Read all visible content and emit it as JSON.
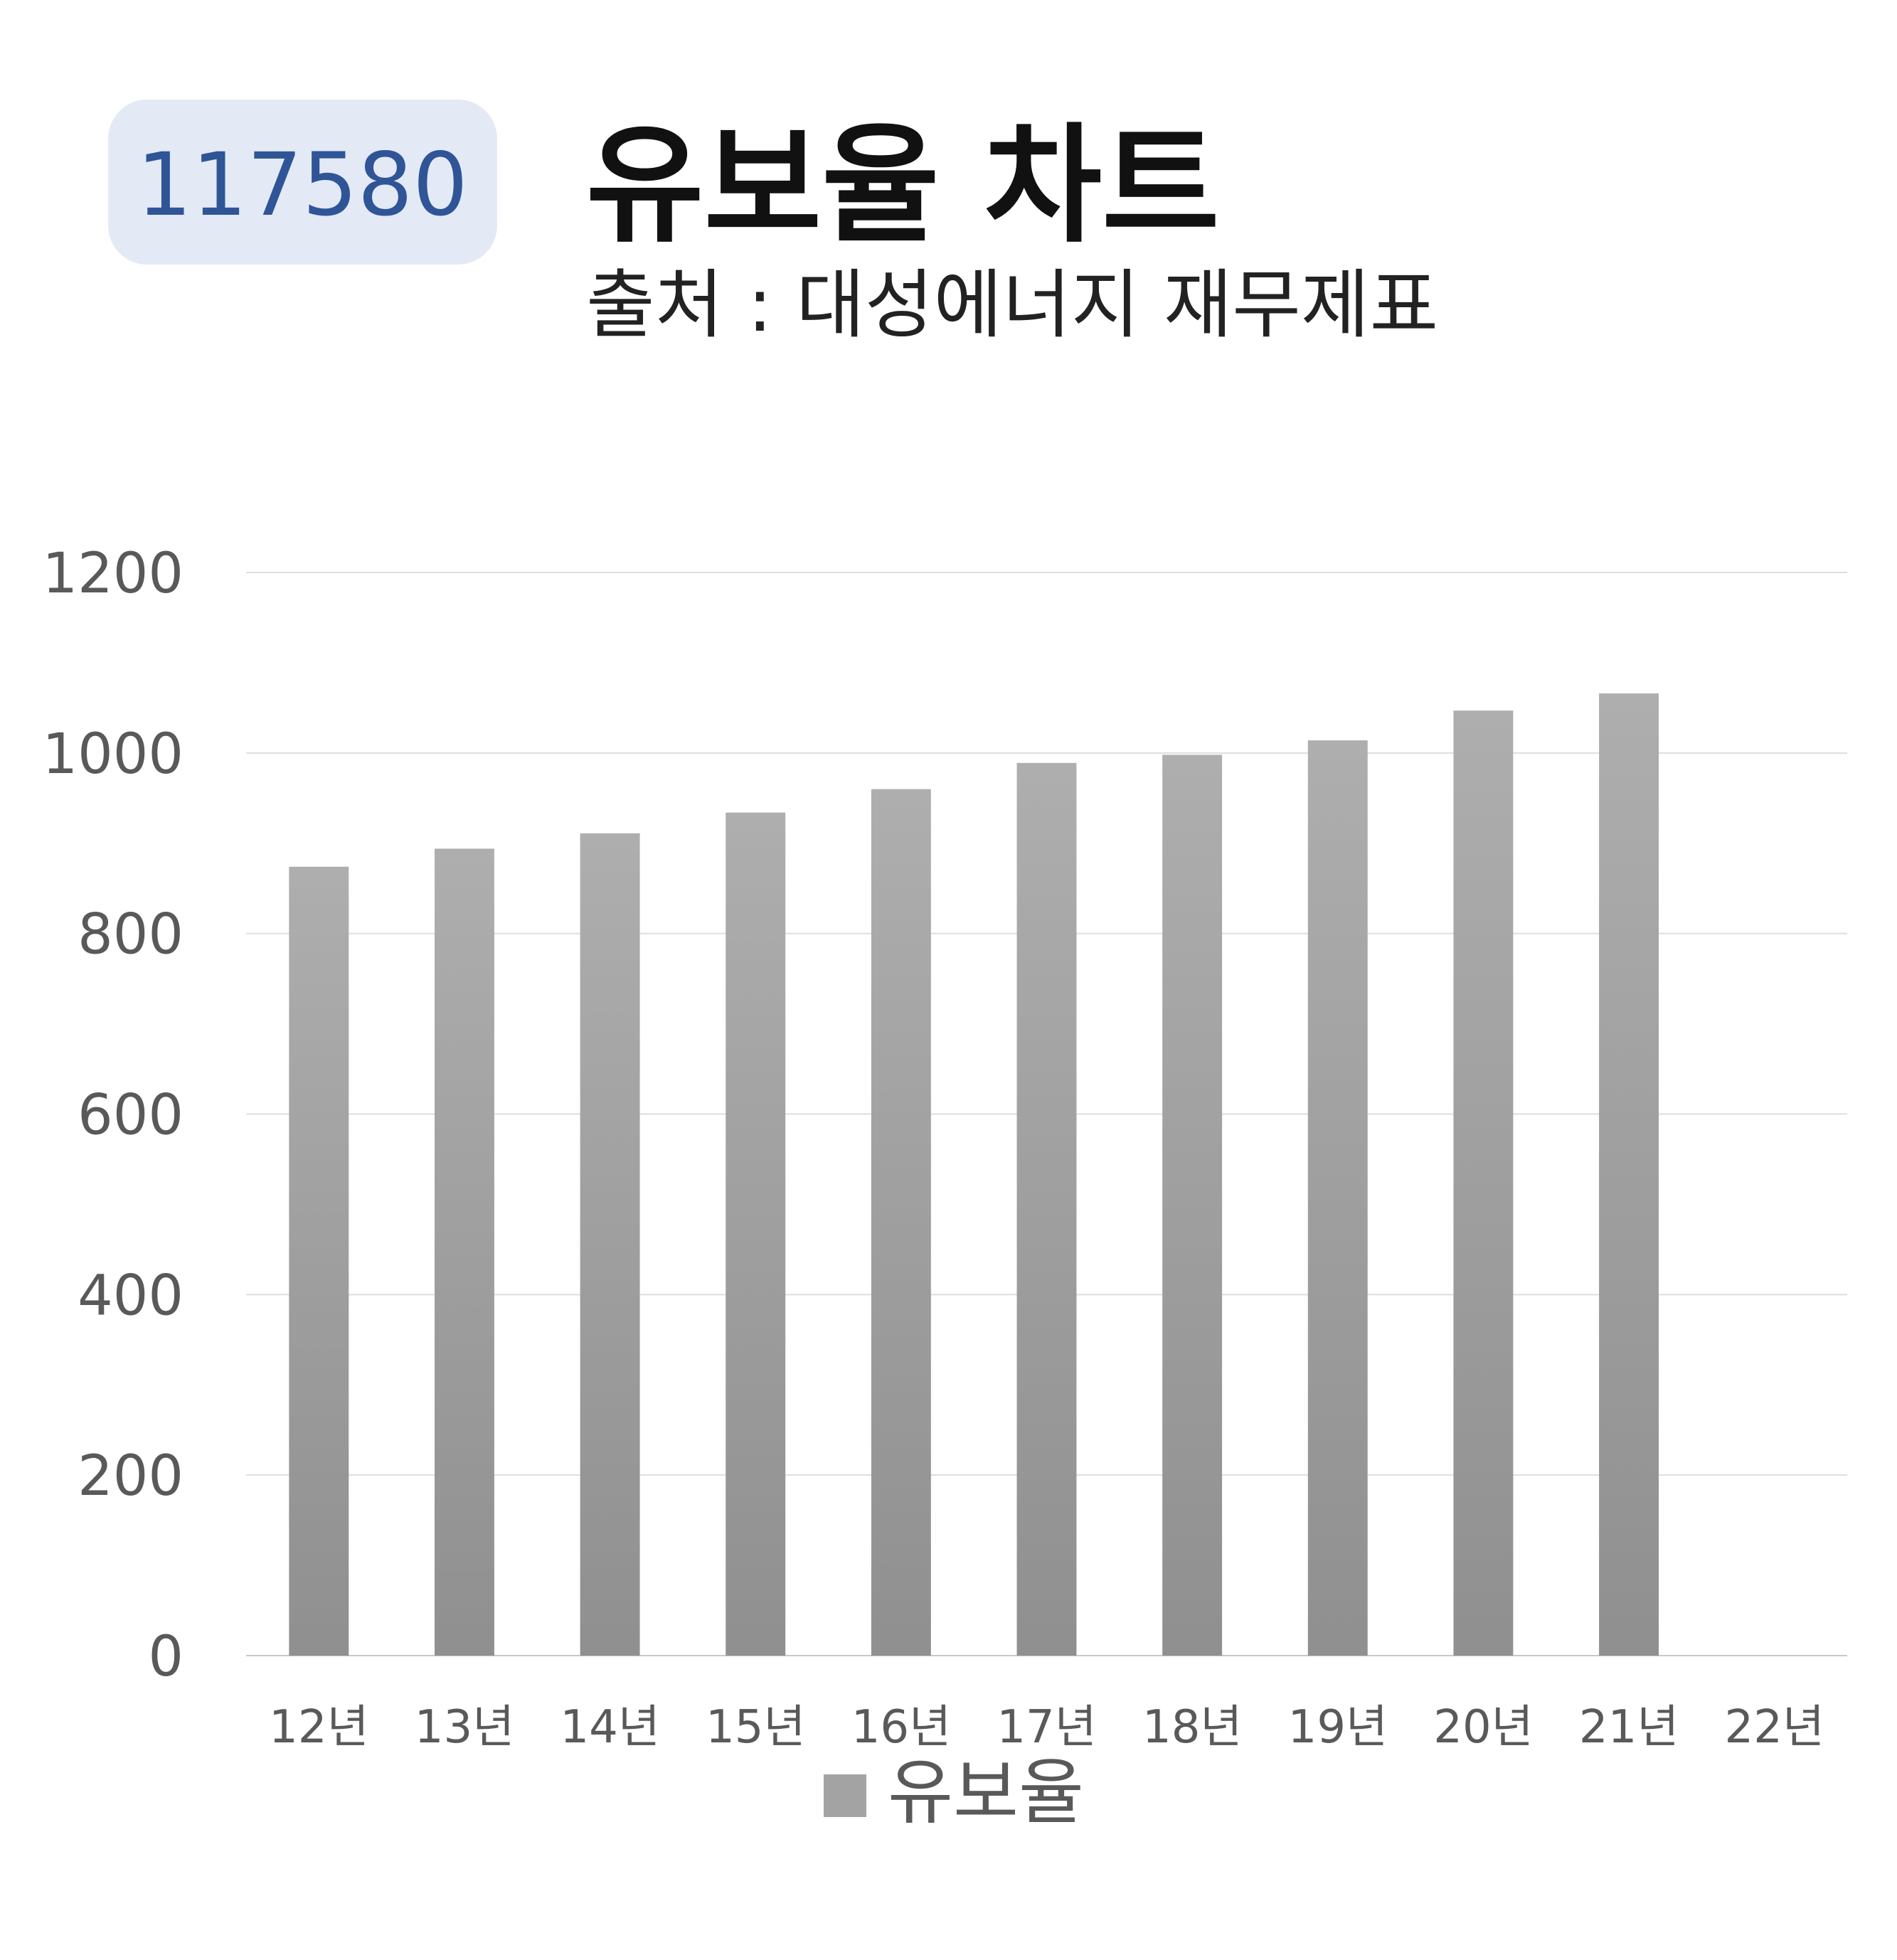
{
  "chart_data": {
    "type": "bar",
    "code": "117580",
    "title": "유보율 차트",
    "subtitle": "출처 : 대성에너지 재무제표",
    "categories": [
      "12년",
      "13년",
      "14년",
      "15년",
      "16년",
      "17년",
      "18년",
      "19년",
      "20년",
      "21년",
      "22년"
    ],
    "series": [
      {
        "name": "유보율",
        "color": "#a3a3a3",
        "values": [
          874,
          894,
          911,
          934,
          960,
          989,
          998,
          1014,
          1047,
          1066,
          null
        ]
      }
    ],
    "ylim": [
      0,
      1200
    ],
    "yticks": [
      0,
      200,
      400,
      600,
      800,
      1000,
      1200
    ],
    "grid": true,
    "legend": "bottom"
  }
}
